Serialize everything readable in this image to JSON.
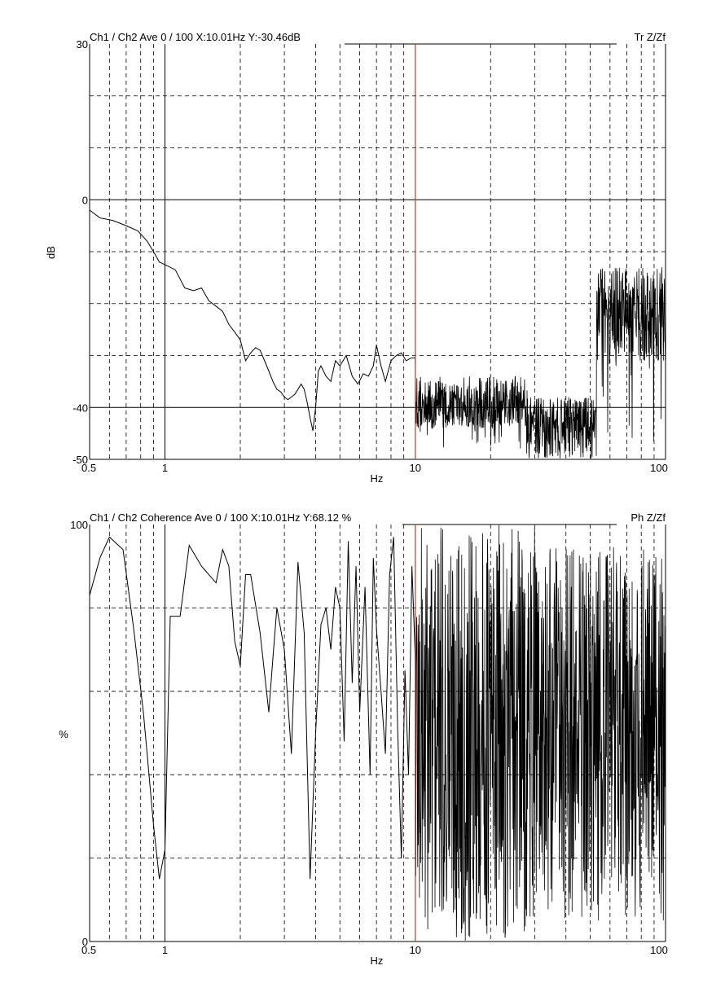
{
  "chart_data": [
    {
      "type": "line",
      "header": "Ch1 / Ch2  Ave 0 / 100  X:10.01Hz  Y:-30.46dB",
      "header_right": "Tr Z/Zf",
      "xlabel": "Hz",
      "ylabel": "dB",
      "x_scale": "log",
      "xlim": [
        0.5,
        100
      ],
      "ylim": [
        -50,
        30
      ],
      "x_tick_labels": [
        {
          "x": 0.5,
          "label": "0.5"
        },
        {
          "x": 1,
          "label": "1"
        },
        {
          "x": 10,
          "label": "10"
        },
        {
          "x": 100,
          "label": "100"
        }
      ],
      "y_tick_labels": [
        {
          "y": 30,
          "label": "30"
        },
        {
          "y": 0,
          "label": "0"
        },
        {
          "y": -40,
          "label": "-40"
        },
        {
          "y": -50,
          "label": "-50"
        }
      ],
      "solid_y_lines": [
        0,
        -40
      ],
      "dashed_y_lines": [
        20,
        10,
        -10,
        -20,
        -30
      ],
      "cursor_x": 10.01,
      "cursor_color": "#c0392b",
      "series": [
        {
          "points": [
            [
              0.5,
              -2
            ],
            [
              0.55,
              -3.5
            ],
            [
              0.62,
              -4
            ],
            [
              0.7,
              -5
            ],
            [
              0.78,
              -6
            ],
            [
              0.85,
              -8
            ],
            [
              0.9,
              -10
            ],
            [
              0.95,
              -12
            ],
            [
              1.0,
              -12.5
            ],
            [
              1.1,
              -13.5
            ],
            [
              1.2,
              -17
            ],
            [
              1.3,
              -17.5
            ],
            [
              1.4,
              -17
            ],
            [
              1.5,
              -19.5
            ],
            [
              1.6,
              -20.5
            ],
            [
              1.7,
              -21.5
            ],
            [
              1.8,
              -24
            ],
            [
              1.9,
              -25.5
            ],
            [
              2.0,
              -27
            ],
            [
              2.1,
              -31
            ],
            [
              2.2,
              -29.5
            ],
            [
              2.3,
              -28.5
            ],
            [
              2.4,
              -29
            ],
            [
              2.5,
              -31
            ],
            [
              2.6,
              -33
            ],
            [
              2.7,
              -35
            ],
            [
              2.8,
              -36.5
            ],
            [
              2.9,
              -37
            ],
            [
              3.0,
              -38
            ],
            [
              3.1,
              -38.5
            ],
            [
              3.2,
              -38
            ],
            [
              3.3,
              -37.5
            ],
            [
              3.4,
              -36.5
            ],
            [
              3.5,
              -35.5
            ],
            [
              3.6,
              -36.5
            ],
            [
              3.7,
              -39
            ],
            [
              3.8,
              -42
            ],
            [
              3.9,
              -44.5
            ],
            [
              4.0,
              -40
            ],
            [
              4.1,
              -33
            ],
            [
              4.2,
              -32
            ],
            [
              4.4,
              -34
            ],
            [
              4.6,
              -35
            ],
            [
              4.8,
              -31
            ],
            [
              5.0,
              -32
            ],
            [
              5.3,
              -30
            ],
            [
              5.6,
              -34
            ],
            [
              5.9,
              -35.5
            ],
            [
              6.2,
              -33.5
            ],
            [
              6.5,
              -34
            ],
            [
              6.8,
              -32
            ],
            [
              7.0,
              -28
            ],
            [
              7.3,
              -32
            ],
            [
              7.6,
              -35
            ],
            [
              8.0,
              -31
            ],
            [
              8.4,
              -30
            ],
            [
              8.8,
              -29.5
            ],
            [
              9.2,
              -31
            ],
            [
              9.6,
              -30.5
            ],
            [
              10.0,
              -30.46
            ]
          ]
        }
      ]
    },
    {
      "type": "line",
      "header": "Ch1 / Ch2  Coherence Ave 0 / 100  X:10.01Hz  Y:68.12 %",
      "header_right": "Ph Z/Zf",
      "xlabel": "Hz",
      "ylabel": "%",
      "x_scale": "log",
      "xlim": [
        0.5,
        100
      ],
      "ylim": [
        0,
        100
      ],
      "x_tick_labels": [
        {
          "x": 0.5,
          "label": "0.5"
        },
        {
          "x": 1,
          "label": "1"
        },
        {
          "x": 10,
          "label": "10"
        },
        {
          "x": 100,
          "label": "100"
        }
      ],
      "y_tick_labels": [
        {
          "y": 100,
          "label": "100"
        },
        {
          "y": 0,
          "label": "0"
        }
      ],
      "solid_y_lines": [],
      "dashed_y_lines": [
        80,
        60,
        40,
        20
      ],
      "cursor_x": 10.01,
      "cursor_color": "#c0392b",
      "series": [
        {
          "points": [
            [
              0.5,
              83
            ],
            [
              0.55,
              92
            ],
            [
              0.6,
              97
            ],
            [
              0.68,
              94
            ],
            [
              0.75,
              75
            ],
            [
              0.82,
              55
            ],
            [
              0.9,
              28
            ],
            [
              0.95,
              15
            ],
            [
              1.0,
              22
            ],
            [
              1.05,
              78
            ],
            [
              1.15,
              78
            ],
            [
              1.25,
              95
            ],
            [
              1.4,
              90
            ],
            [
              1.6,
              86
            ],
            [
              1.7,
              94
            ],
            [
              1.8,
              90
            ],
            [
              1.9,
              72
            ],
            [
              2.0,
              66
            ],
            [
              2.1,
              88
            ],
            [
              2.2,
              88
            ],
            [
              2.4,
              74
            ],
            [
              2.6,
              55
            ],
            [
              2.7,
              68
            ],
            [
              2.8,
              80
            ],
            [
              3.0,
              70
            ],
            [
              3.2,
              45
            ],
            [
              3.4,
              91
            ],
            [
              3.6,
              74
            ],
            [
              3.8,
              15
            ],
            [
              4.0,
              50
            ],
            [
              4.2,
              76
            ],
            [
              4.4,
              80
            ],
            [
              4.6,
              70
            ],
            [
              4.8,
              85
            ],
            [
              5.0,
              80
            ],
            [
              5.2,
              48
            ],
            [
              5.4,
              96
            ],
            [
              5.6,
              62
            ],
            [
              5.8,
              90
            ],
            [
              6.0,
              55
            ],
            [
              6.3,
              85
            ],
            [
              6.6,
              40
            ],
            [
              6.8,
              92
            ],
            [
              7.0,
              75
            ],
            [
              7.3,
              60
            ],
            [
              7.6,
              45
            ],
            [
              7.9,
              88
            ],
            [
              8.2,
              97
            ],
            [
              8.5,
              52
            ],
            [
              8.8,
              20
            ],
            [
              9.1,
              65
            ],
            [
              9.4,
              40
            ],
            [
              9.7,
              90
            ],
            [
              10.0,
              68.12
            ]
          ]
        }
      ]
    }
  ]
}
